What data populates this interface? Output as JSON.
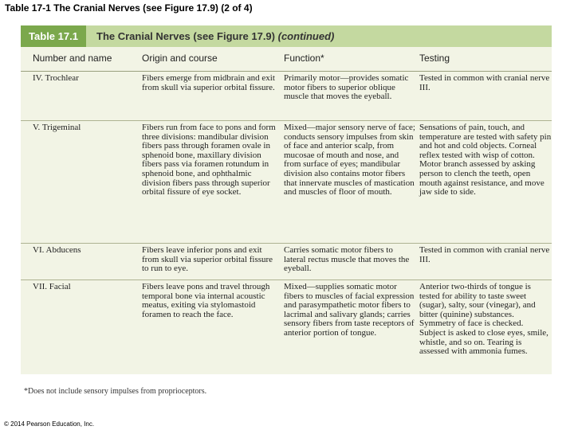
{
  "slide_title": "Table 17-1 The Cranial Nerves (see Figure 17.9) (2 of 4)",
  "table": {
    "label": "Table 17.1",
    "heading": "The Cranial Nerves (see Figure 17.9)",
    "heading_continued": "(continued)",
    "columns": [
      "Number and name",
      "Origin and course",
      "Function*",
      "Testing"
    ],
    "rows": [
      {
        "name": "IV. Trochlear",
        "origin": "Fibers emerge from midbrain and exit from skull via superior orbital fissure.",
        "function": "Primarily motor—provides somatic motor fibers to superior oblique muscle that moves the eyeball.",
        "testing": "Tested in common with cranial nerve III."
      },
      {
        "name": "V. Trigeminal",
        "origin": "Fibers run from face to pons and form three divisions: mandibular division fibers pass through foramen ovale in sphenoid bone, maxillary division fibers pass via foramen rotundum in sphenoid bone, and ophthalmic division fibers pass through superior orbital fissure of eye socket.",
        "function": "Mixed—major sensory nerve of face; conducts sensory impulses from skin of face and anterior scalp, from mucosae of mouth and nose, and from surface of eyes; mandibular division also contains motor fibers that innervate muscles of mastication and muscles of floor of mouth.",
        "testing": "Sensations of pain, touch, and temperature are tested with safety pin and hot and cold objects. Corneal reflex tested with wisp of cotton. Motor branch assessed by asking person to clench the teeth, open mouth against resistance, and move jaw side to side."
      },
      {
        "name": "VI. Abducens",
        "origin": "Fibers leave inferior pons and exit from skull via superior orbital fissure to run to eye.",
        "function": "Carries somatic motor fibers to lateral rectus muscle that moves the eyeball.",
        "testing": "Tested in common with cranial nerve III."
      },
      {
        "name": "VII. Facial",
        "origin": "Fibers leave pons and travel through temporal bone via internal acoustic meatus, exiting via stylomastoid foramen to reach the face.",
        "function": "Mixed—supplies somatic motor fibers to muscles of facial expression and parasympathetic motor fibers to lacrimal and salivary glands; carries sensory fibers from taste receptors of anterior portion of tongue.",
        "testing": "Anterior two-thirds of tongue is tested for ability to taste sweet (sugar), salty, sour (vinegar), and bitter (quinine) substances. Symmetry of face is checked. Subject is asked to close eyes, smile, whistle, and so on. Tearing is assessed with ammonia fumes."
      }
    ],
    "footnote": "*Does not include sensory impulses from proprioceptors."
  },
  "copyright": "© 2014 Pearson Education, Inc.",
  "colors": {
    "label_bg": "#7ba84c",
    "header_band": "#c4d9a0",
    "table_bg": "#f2f4e5"
  }
}
